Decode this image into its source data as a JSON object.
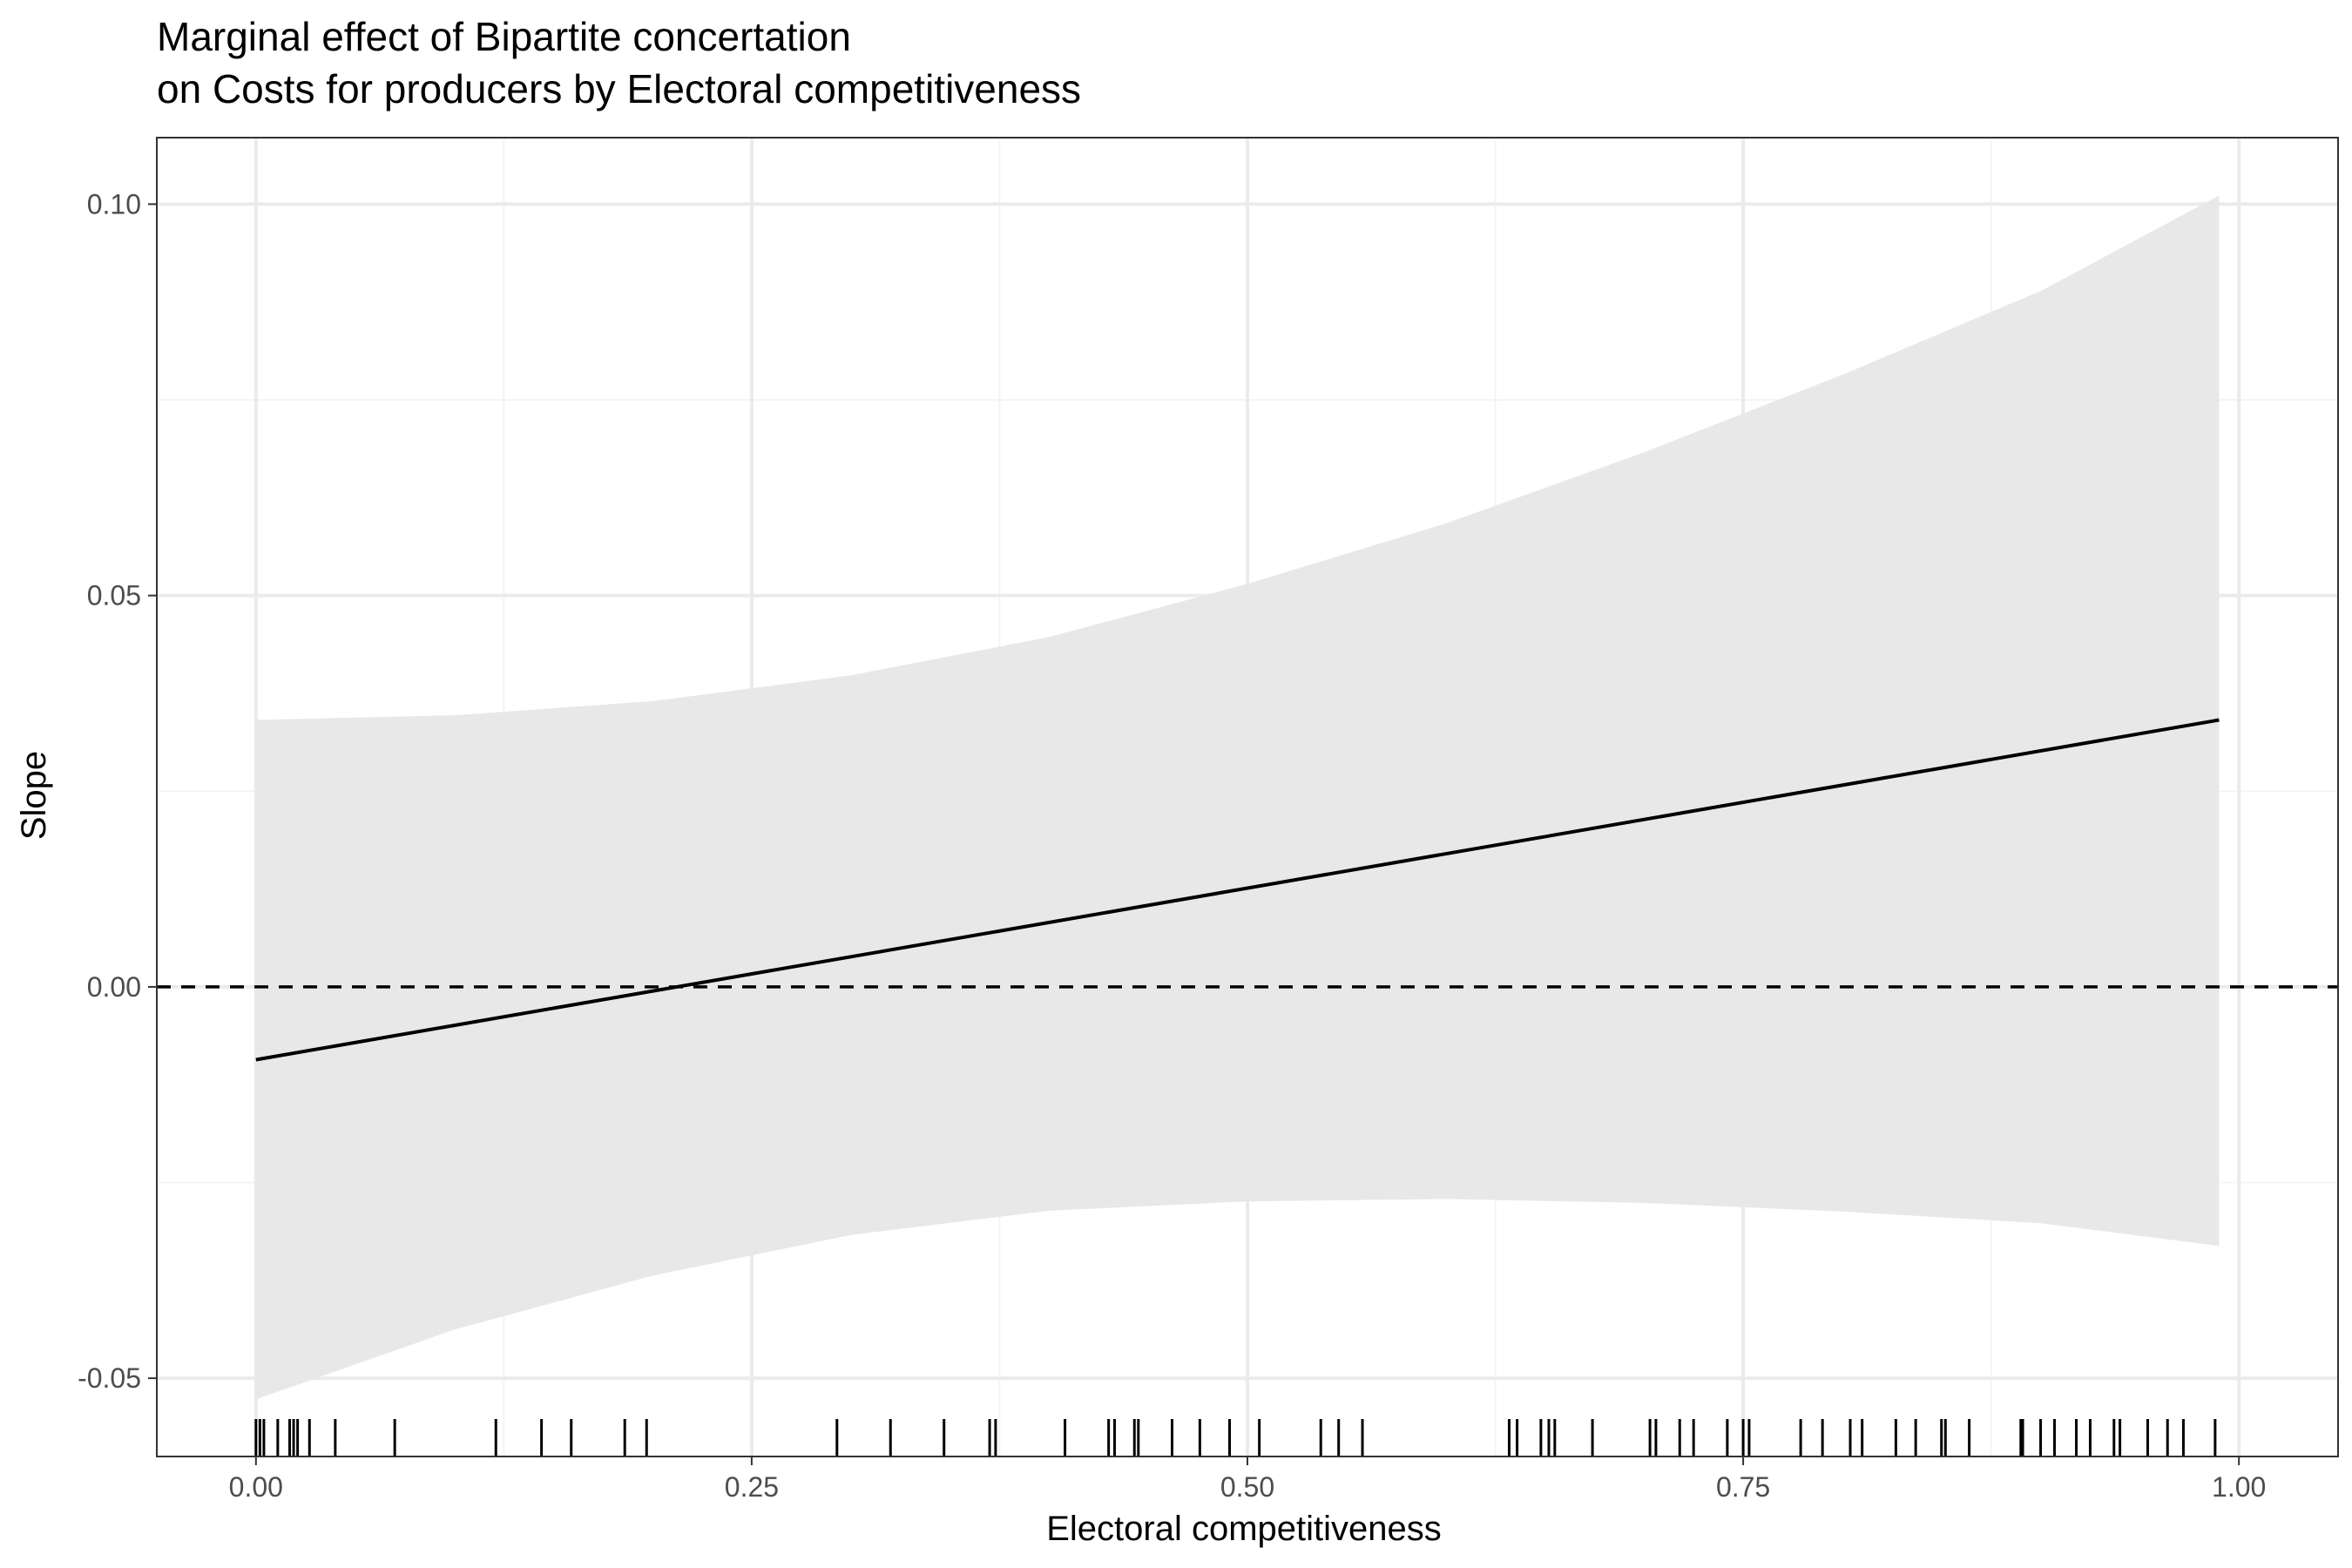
{
  "chart_data": {
    "type": "line",
    "title_lines": [
      "Marginal effect of Bipartite concertation",
      "on Costs for producers by Electoral competitiveness"
    ],
    "xlabel": "Electoral competitiveness",
    "ylabel": "Slope",
    "xlim": [
      -0.05,
      1.05
    ],
    "ylim": [
      -0.06,
      0.1085
    ],
    "x_ticks": [
      0.0,
      0.25,
      0.5,
      0.75,
      1.0
    ],
    "x_tick_labels": [
      "0.00",
      "0.25",
      "0.50",
      "0.75",
      "1.00"
    ],
    "y_ticks": [
      -0.05,
      0.0,
      0.05,
      0.1
    ],
    "y_tick_labels": [
      "-0.05",
      "0.00",
      "0.05",
      "0.10"
    ],
    "x_minor_ticks": [
      0.125,
      0.375,
      0.625,
      0.875
    ],
    "y_minor_ticks": [
      -0.025,
      0.025,
      0.075
    ],
    "grid": true,
    "reference_line": {
      "y": 0.0,
      "style": "dashed"
    },
    "series": [
      {
        "kind": "line",
        "x": [
          0.0,
          0.99
        ],
        "y": [
          -0.0093,
          0.0341
        ]
      },
      {
        "kind": "ribbon",
        "x": [
          0.0,
          0.1,
          0.2,
          0.3,
          0.4,
          0.5,
          0.6,
          0.7,
          0.8,
          0.9,
          0.99
        ],
        "upper": [
          0.0341,
          0.0347,
          0.0365,
          0.0398,
          0.0447,
          0.0515,
          0.0592,
          0.0683,
          0.0782,
          0.0889,
          0.1011
        ],
        "lower": [
          -0.0527,
          -0.0438,
          -0.0369,
          -0.0317,
          -0.0286,
          -0.0274,
          -0.0271,
          -0.0276,
          -0.0287,
          -0.0302,
          -0.0331
        ]
      }
    ],
    "rug_x": [
      0.0,
      0.002,
      0.004,
      0.011,
      0.017,
      0.019,
      0.021,
      0.027,
      0.04,
      0.07,
      0.121,
      0.144,
      0.159,
      0.186,
      0.197,
      0.293,
      0.32,
      0.347,
      0.37,
      0.373,
      0.408,
      0.43,
      0.433,
      0.443,
      0.445,
      0.462,
      0.476,
      0.491,
      0.506,
      0.537,
      0.546,
      0.558,
      0.632,
      0.636,
      0.648,
      0.652,
      0.655,
      0.674,
      0.703,
      0.706,
      0.718,
      0.725,
      0.742,
      0.75,
      0.753,
      0.779,
      0.79,
      0.804,
      0.81,
      0.827,
      0.837,
      0.85,
      0.852,
      0.864,
      0.89,
      0.891,
      0.9,
      0.907,
      0.918,
      0.925,
      0.937,
      0.94,
      0.954,
      0.964,
      0.972,
      0.988
    ],
    "colors": {
      "line": "#000000",
      "ribbon": "#e8e8e8",
      "grid_major": "#ebebeb",
      "grid_minor": "#f4f4f4",
      "panel_border": "#333333",
      "tick_label": "#4d4d4d"
    }
  }
}
